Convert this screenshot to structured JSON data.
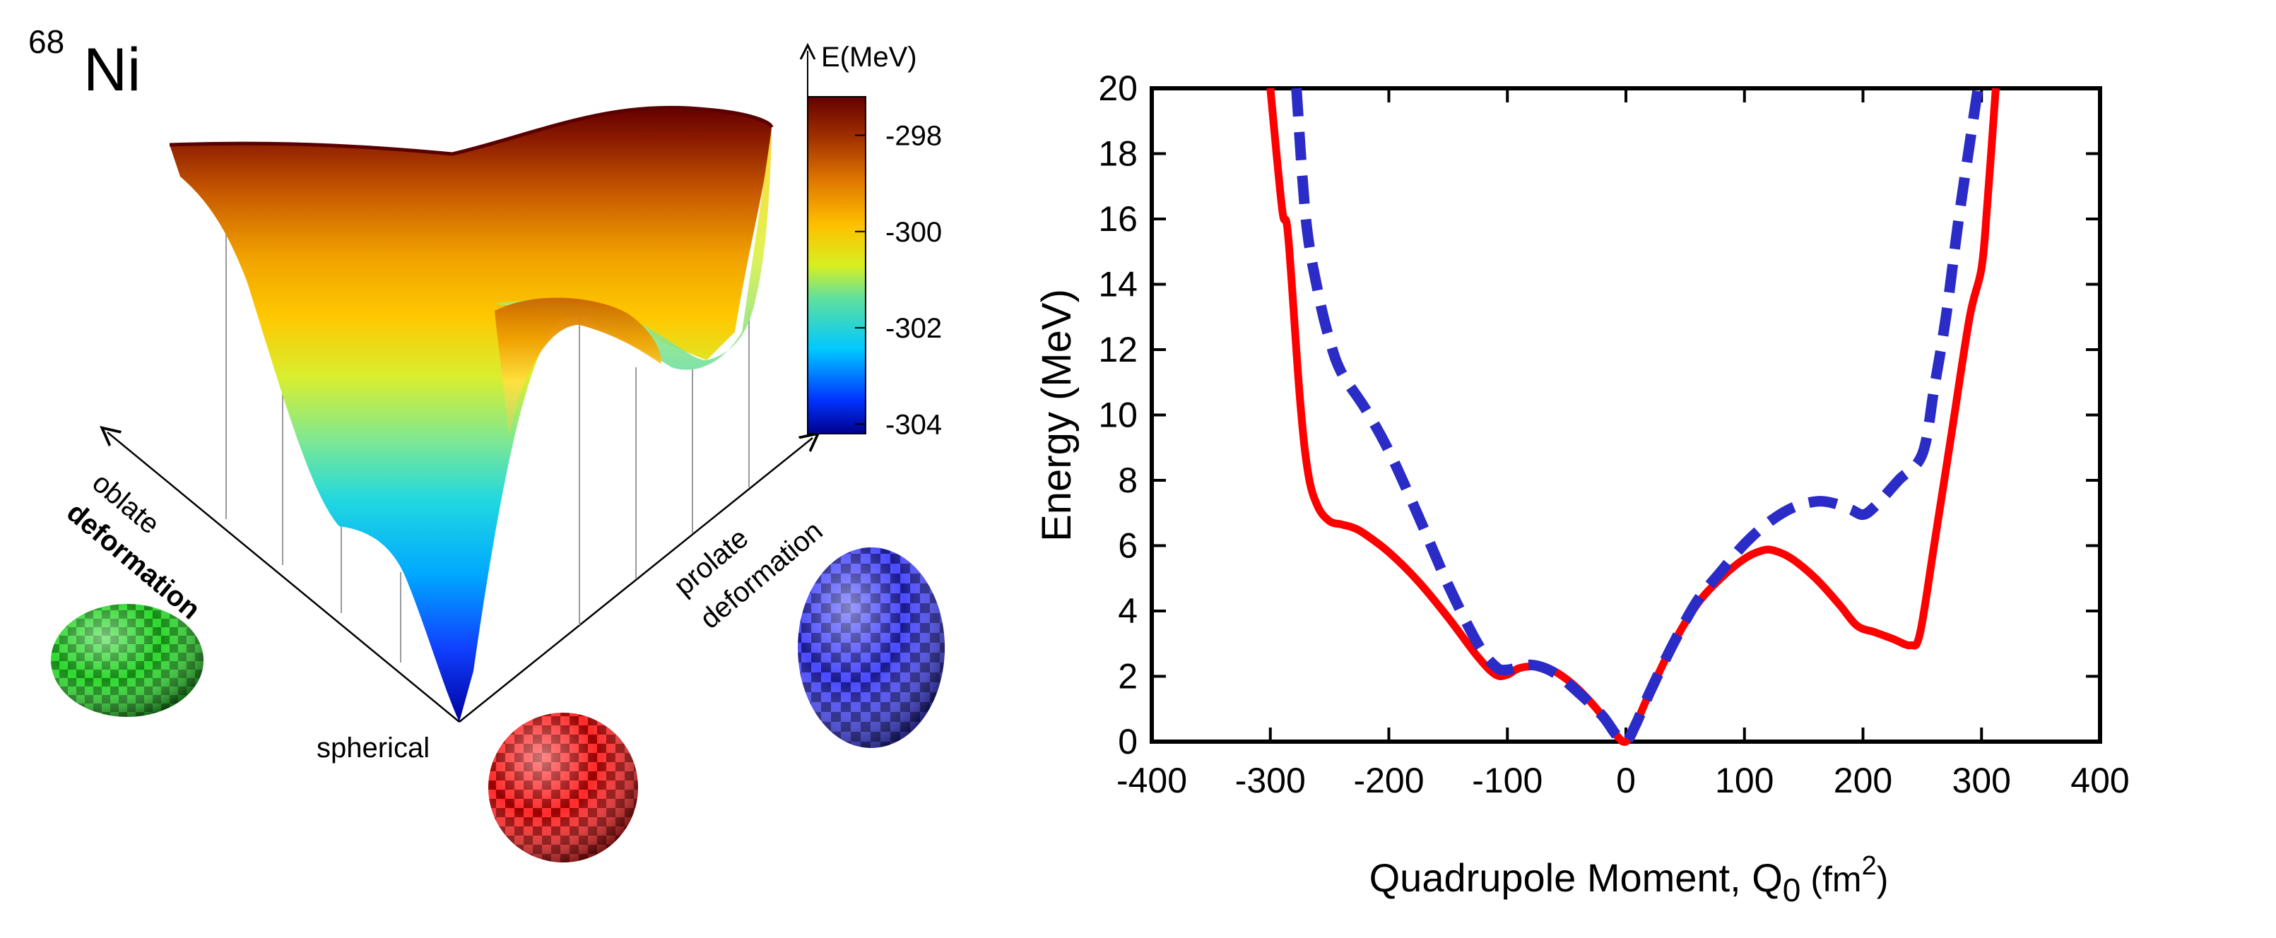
{
  "left": {
    "nucleus": {
      "mass_number": "68",
      "symbol": "Ni"
    },
    "colorbar": {
      "title": "E(MeV)",
      "ticks": [
        -298,
        -300,
        -302,
        -304
      ],
      "range": [
        -304.2,
        -297.2
      ],
      "colors": [
        "#00008b",
        "#0033ff",
        "#00c8ff",
        "#5ee0a0",
        "#d8ef20",
        "#ffc000",
        "#e07800",
        "#a03000",
        "#650000"
      ]
    },
    "axis_labels": {
      "oblate": "oblate",
      "oblate2": "deformation",
      "prolate": "prolate",
      "prolate2": "deformation",
      "spherical": "spherical"
    },
    "shapes": [
      {
        "name": "oblate-spheroid",
        "color": "#22bb22"
      },
      {
        "name": "sphere",
        "color": "#dd1111"
      },
      {
        "name": "prolate-spheroid",
        "color": "#2a2ad8"
      }
    ]
  },
  "chart_data": {
    "type": "line",
    "title": "",
    "xlabel": "Quadrupole Moment, Q",
    "xlabel_sub": "0",
    "xlabel_unit_open": "(fm",
    "xlabel_unit_sup": "2",
    "xlabel_unit_close": ")",
    "ylabel": "Energy (MeV)",
    "xlim": [
      -400,
      400
    ],
    "ylim": [
      0,
      20
    ],
    "xticks": [
      -400,
      -300,
      -200,
      -100,
      0,
      100,
      200,
      300,
      400
    ],
    "yticks": [
      0,
      2,
      4,
      6,
      8,
      10,
      12,
      14,
      16,
      18,
      20
    ],
    "grid": false,
    "series": [
      {
        "name": "red-solid",
        "color": "#ff0000",
        "style": "solid",
        "x": [
          -300,
          -290,
          -285,
          -275,
          -268,
          -260,
          -250,
          -240,
          -230,
          -220,
          -200,
          -175,
          -150,
          -125,
          -110,
          -100,
          -90,
          -75,
          -60,
          -40,
          -20,
          -8,
          0,
          8,
          20,
          40,
          60,
          80,
          100,
          115,
          125,
          140,
          160,
          180,
          195,
          210,
          225,
          240,
          248,
          260,
          275,
          290,
          300,
          305,
          312
        ],
        "y": [
          20,
          16.3,
          15.5,
          10.5,
          8.2,
          7.2,
          6.75,
          6.65,
          6.55,
          6.35,
          5.8,
          4.9,
          3.8,
          2.6,
          2.05,
          2.05,
          2.25,
          2.3,
          2.15,
          1.6,
          0.8,
          0.2,
          0,
          0.5,
          1.5,
          3.0,
          4.2,
          5.0,
          5.6,
          5.85,
          5.85,
          5.6,
          5.0,
          4.2,
          3.55,
          3.35,
          3.15,
          2.95,
          3.3,
          6.0,
          9.5,
          13.0,
          14.5,
          16.5,
          20
        ]
      },
      {
        "name": "blue-dashed",
        "color": "#2b2bc8",
        "style": "dashed",
        "x": [
          -278,
          -270,
          -260,
          -250,
          -240,
          -220,
          -200,
          -175,
          -150,
          -125,
          -110,
          -100,
          -80,
          -60,
          -40,
          -20,
          -8,
          0,
          8,
          20,
          40,
          60,
          80,
          100,
          120,
          140,
          160,
          175,
          190,
          200,
          210,
          230,
          250,
          260,
          270,
          280,
          290,
          297
        ],
        "y": [
          20,
          16,
          13.8,
          12.3,
          11.3,
          10.2,
          8.9,
          6.9,
          4.8,
          3.0,
          2.3,
          2.2,
          2.35,
          2.1,
          1.5,
          0.8,
          0.2,
          0,
          0.5,
          1.5,
          3.0,
          4.3,
          5.2,
          6.05,
          6.7,
          7.15,
          7.35,
          7.3,
          7.1,
          6.95,
          7.2,
          8.0,
          8.8,
          10.8,
          13.0,
          15.8,
          18.3,
          20
        ]
      }
    ]
  }
}
